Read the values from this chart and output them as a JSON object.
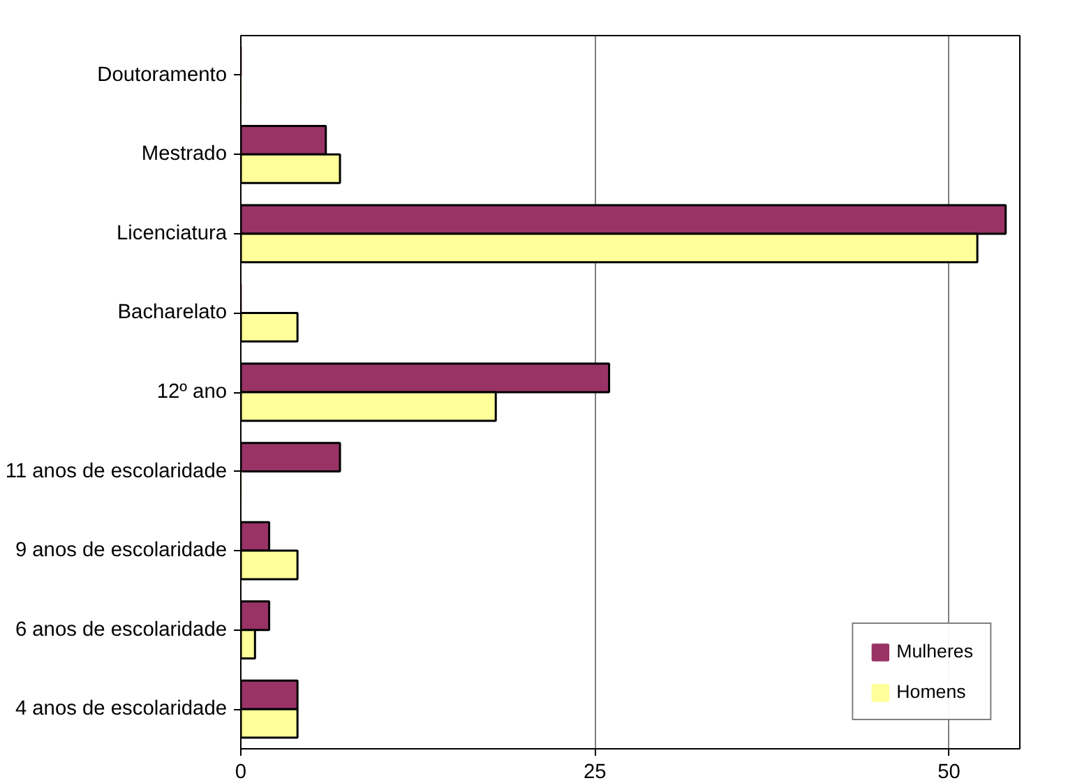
{
  "chart_data": {
    "type": "bar",
    "orientation": "horizontal",
    "categories": [
      "Doutoramento",
      "Mestrado",
      "Licenciatura",
      "Bacharelato",
      "12º ano",
      "11 anos de escolaridade",
      "9 anos de escolaridade",
      "6 anos de escolaridade",
      "4 anos de escolaridade"
    ],
    "series": [
      {
        "name": "Mulheres",
        "color": "#993366",
        "values": [
          0,
          6,
          54,
          0,
          26,
          7,
          2,
          2,
          4
        ]
      },
      {
        "name": "Homens",
        "color": "#ffff99",
        "values": [
          0,
          7,
          52,
          4,
          18,
          0,
          4,
          1,
          4
        ]
      }
    ],
    "xlim": [
      0,
      55
    ],
    "xticks": [
      0,
      25,
      50
    ],
    "grid": "x",
    "legend": "bottom right"
  }
}
